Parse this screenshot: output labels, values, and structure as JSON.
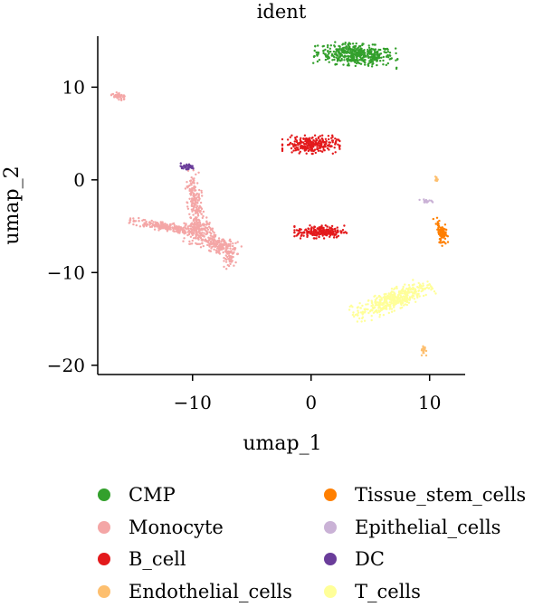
{
  "chart_data": {
    "type": "scatter",
    "title": "ident",
    "xlabel": "umap_1",
    "ylabel": "umap_2",
    "xlim": [
      -18,
      13
    ],
    "ylim": [
      -21,
      15.5
    ],
    "xticks": [
      -10,
      0,
      10
    ],
    "yticks": [
      10,
      0,
      -10,
      -20
    ],
    "xtick_labels": [
      "−10",
      "0",
      "10"
    ],
    "ytick_labels": [
      "10",
      "0",
      "−10",
      "−20"
    ],
    "grid": false,
    "legend_position": "bottom",
    "series": [
      {
        "name": "CMP",
        "color": "#33a02c",
        "clusters": [
          {
            "cx": 3.8,
            "cy": 13.5,
            "rx": 3.2,
            "ry": 1.1,
            "n": 450,
            "rot": -5
          }
        ]
      },
      {
        "name": "Monocyte",
        "color": "#f4a6a6",
        "clusters": [
          {
            "cx": -9.8,
            "cy": -2.5,
            "rx": 0.6,
            "ry": 3.2,
            "n": 200,
            "rot": 5
          },
          {
            "cx": -12.5,
            "cy": -5.0,
            "rx": 2.6,
            "ry": 0.45,
            "n": 200,
            "rot": -12
          },
          {
            "cx": -7.8,
            "cy": -7.0,
            "rx": 1.7,
            "ry": 0.8,
            "n": 180,
            "rot": -20
          },
          {
            "cx": -6.8,
            "cy": -8.5,
            "rx": 0.5,
            "ry": 1.0,
            "n": 50,
            "rot": 0
          },
          {
            "cx": -9.5,
            "cy": -5.5,
            "rx": 1.2,
            "ry": 1.3,
            "n": 150,
            "rot": 0
          },
          {
            "cx": -16.2,
            "cy": 9.0,
            "rx": 0.6,
            "ry": 0.3,
            "n": 50,
            "rot": -20
          }
        ]
      },
      {
        "name": "B_cell",
        "color": "#e31a1c",
        "clusters": [
          {
            "cx": 0.0,
            "cy": 3.8,
            "rx": 2.2,
            "ry": 0.9,
            "n": 260,
            "rot": 0
          },
          {
            "cx": 0.8,
            "cy": -5.6,
            "rx": 2.0,
            "ry": 0.65,
            "n": 220,
            "rot": 0
          }
        ]
      },
      {
        "name": "Endothelial_cells",
        "color": "#fdbf6f",
        "clusters": [
          {
            "cx": 10.6,
            "cy": 0.0,
            "rx": 0.12,
            "ry": 0.35,
            "n": 12,
            "rot": 0
          },
          {
            "cx": 9.5,
            "cy": -18.4,
            "rx": 0.2,
            "ry": 0.5,
            "n": 25,
            "rot": 0
          }
        ]
      },
      {
        "name": "Tissue_stem_cells",
        "color": "#ff7f00",
        "clusters": [
          {
            "cx": 11.0,
            "cy": -5.6,
            "rx": 0.4,
            "ry": 1.4,
            "n": 80,
            "rot": 10
          }
        ]
      },
      {
        "name": "Epithelial_cells",
        "color": "#cab2d6",
        "clusters": [
          {
            "cx": 9.8,
            "cy": -2.3,
            "rx": 0.6,
            "ry": 0.15,
            "n": 20,
            "rot": -10
          }
        ]
      },
      {
        "name": "DC",
        "color": "#6a3d9a",
        "clusters": [
          {
            "cx": -10.5,
            "cy": 1.4,
            "rx": 0.7,
            "ry": 0.35,
            "n": 40,
            "rot": 0
          }
        ]
      },
      {
        "name": "T_cells",
        "color": "#ffff99",
        "clusters": [
          {
            "cx": 6.8,
            "cy": -13.0,
            "rx": 3.3,
            "ry": 1.0,
            "n": 420,
            "rot": 28
          }
        ]
      }
    ]
  }
}
